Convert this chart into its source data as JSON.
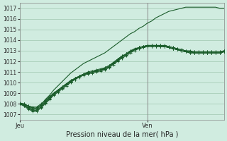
{
  "title": "Pression niveau de la mer( hPa )",
  "bg_color": "#d0ece0",
  "grid_color": "#a0c8b0",
  "line_color": "#1a5c2a",
  "marker_color": "#1a5c2a",
  "ylim": [
    1006.5,
    1017.5
  ],
  "yticks": [
    1007,
    1008,
    1009,
    1010,
    1011,
    1012,
    1013,
    1014,
    1015,
    1016,
    1017
  ],
  "vline_x": 0.625,
  "n_points": 49,
  "series": [
    [
      1008.0,
      1007.9,
      1007.6,
      1007.4,
      1007.4,
      1007.7,
      1008.1,
      1008.5,
      1008.9,
      1009.2,
      1009.5,
      1009.8,
      1010.1,
      1010.4,
      1010.6,
      1010.8,
      1010.9,
      1011.0,
      1011.1,
      1011.2,
      1011.3,
      1011.5,
      1011.8,
      1012.1,
      1012.4,
      1012.7,
      1012.9,
      1013.1,
      1013.3,
      1013.4,
      1013.5,
      1013.5,
      1013.5,
      1013.5,
      1013.5,
      1013.4,
      1013.3,
      1013.2,
      1013.1,
      1013.0,
      1012.9,
      1012.8,
      1012.8,
      1012.8,
      1012.8,
      1012.8,
      1012.8,
      1012.8,
      1012.9
    ],
    [
      1008.0,
      1007.8,
      1007.5,
      1007.3,
      1007.3,
      1007.6,
      1008.0,
      1008.4,
      1008.8,
      1009.1,
      1009.4,
      1009.7,
      1010.0,
      1010.3,
      1010.5,
      1010.7,
      1010.8,
      1010.9,
      1011.0,
      1011.1,
      1011.2,
      1011.4,
      1011.7,
      1012.0,
      1012.3,
      1012.5,
      1012.8,
      1013.0,
      1013.2,
      1013.3,
      1013.4,
      1013.4,
      1013.4,
      1013.4,
      1013.4,
      1013.3,
      1013.2,
      1013.1,
      1013.0,
      1012.9,
      1012.8,
      1012.8,
      1012.8,
      1012.8,
      1012.8,
      1012.8,
      1012.8,
      1012.8,
      1012.9
    ],
    [
      1008.1,
      1008.0,
      1007.8,
      1007.6,
      1007.6,
      1007.9,
      1008.3,
      1008.6,
      1009.0,
      1009.3,
      1009.6,
      1009.9,
      1010.2,
      1010.4,
      1010.6,
      1010.8,
      1010.9,
      1011.0,
      1011.1,
      1011.2,
      1011.4,
      1011.6,
      1011.9,
      1012.2,
      1012.5,
      1012.7,
      1013.0,
      1013.1,
      1013.3,
      1013.4,
      1013.5,
      1013.5,
      1013.5,
      1013.5,
      1013.5,
      1013.4,
      1013.3,
      1013.2,
      1013.1,
      1013.0,
      1013.0,
      1012.9,
      1012.9,
      1012.9,
      1012.9,
      1012.9,
      1012.9,
      1012.9,
      1013.0
    ],
    [
      1008.0,
      1007.9,
      1007.7,
      1007.5,
      1007.5,
      1007.8,
      1008.2,
      1008.6,
      1009.0,
      1009.3,
      1009.6,
      1009.9,
      1010.1,
      1010.4,
      1010.6,
      1010.8,
      1010.9,
      1011.0,
      1011.1,
      1011.2,
      1011.3,
      1011.5,
      1011.8,
      1012.1,
      1012.4,
      1012.7,
      1012.9,
      1013.1,
      1013.3,
      1013.4,
      1013.5,
      1013.5,
      1013.5,
      1013.5,
      1013.4,
      1013.3,
      1013.2,
      1013.1,
      1013.0,
      1012.9,
      1012.9,
      1012.8,
      1012.8,
      1012.8,
      1012.8,
      1012.8,
      1012.8,
      1012.8,
      1012.9
    ],
    [
      1008.0,
      1008.0,
      1007.8,
      1007.7,
      1007.7,
      1008.0,
      1008.3,
      1008.7,
      1009.0,
      1009.3,
      1009.6,
      1009.9,
      1010.2,
      1010.4,
      1010.6,
      1010.8,
      1011.0,
      1011.1,
      1011.2,
      1011.3,
      1011.4,
      1011.6,
      1011.9,
      1012.2,
      1012.5,
      1012.7,
      1013.0,
      1013.2,
      1013.3,
      1013.4,
      1013.5,
      1013.5,
      1013.5,
      1013.4,
      1013.4,
      1013.3,
      1013.2,
      1013.1,
      1013.0,
      1012.9,
      1012.9,
      1012.9,
      1012.9,
      1012.9,
      1012.9,
      1012.9,
      1012.9,
      1012.9,
      1013.0
    ],
    [
      1008.0,
      1007.8,
      1007.6,
      1007.4,
      1007.4,
      1007.7,
      1008.1,
      1008.5,
      1008.9,
      1009.2,
      1009.5,
      1009.8,
      1010.1,
      1010.3,
      1010.6,
      1010.8,
      1010.9,
      1011.0,
      1011.1,
      1011.2,
      1011.3,
      1011.5,
      1011.8,
      1012.1,
      1012.4,
      1012.6,
      1012.9,
      1013.1,
      1013.2,
      1013.3,
      1013.4,
      1013.4,
      1013.4,
      1013.4,
      1013.4,
      1013.3,
      1013.2,
      1013.1,
      1013.0,
      1012.9,
      1012.8,
      1012.8,
      1012.8,
      1012.8,
      1012.8,
      1012.8,
      1012.8,
      1012.8,
      1012.9
    ]
  ],
  "line_high": [
    1008.0,
    1008.0,
    1007.8,
    1007.6,
    1007.6,
    1007.9,
    1008.4,
    1008.8,
    1009.3,
    1009.7,
    1010.1,
    1010.5,
    1010.9,
    1011.2,
    1011.5,
    1011.8,
    1012.0,
    1012.2,
    1012.4,
    1012.6,
    1012.8,
    1013.1,
    1013.4,
    1013.7,
    1014.0,
    1014.3,
    1014.6,
    1014.8,
    1015.1,
    1015.3,
    1015.6,
    1015.8,
    1016.1,
    1016.3,
    1016.5,
    1016.7,
    1016.8,
    1016.9,
    1017.0,
    1017.1,
    1017.1,
    1017.1,
    1017.1,
    1017.1,
    1017.1,
    1017.1,
    1017.1,
    1017.0,
    1017.0
  ]
}
